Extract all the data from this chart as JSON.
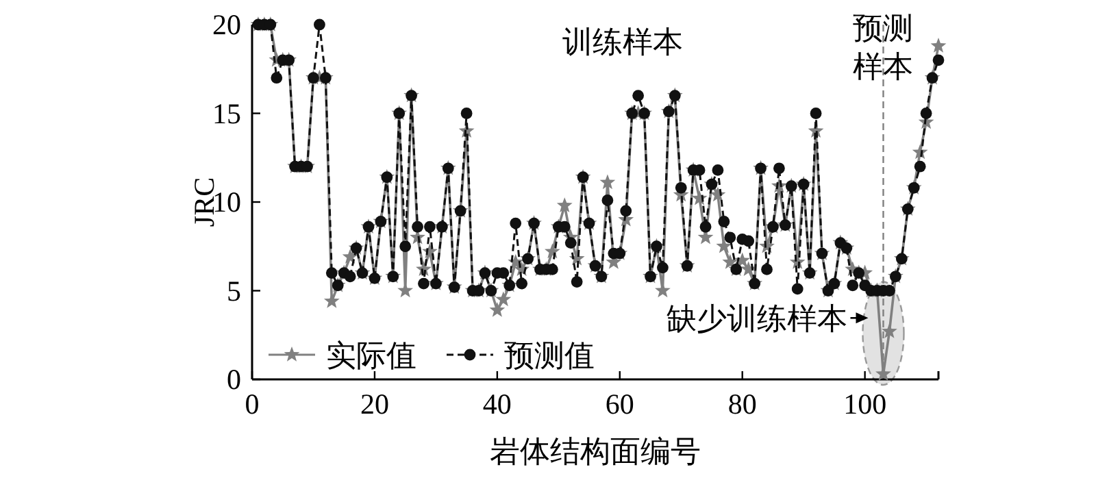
{
  "chart_data": {
    "type": "line",
    "xlabel": "岩体结构面编号",
    "ylabel": "JRC",
    "x": [
      1,
      2,
      3,
      4,
      5,
      6,
      7,
      8,
      9,
      10,
      11,
      12,
      13,
      14,
      15,
      16,
      17,
      18,
      19,
      20,
      21,
      22,
      23,
      24,
      25,
      26,
      27,
      28,
      29,
      30,
      31,
      32,
      33,
      34,
      35,
      36,
      37,
      38,
      39,
      40,
      41,
      42,
      43,
      44,
      45,
      46,
      47,
      48,
      49,
      50,
      51,
      52,
      53,
      54,
      55,
      56,
      57,
      58,
      59,
      60,
      61,
      62,
      63,
      64,
      65,
      66,
      67,
      68,
      69,
      70,
      71,
      72,
      73,
      74,
      75,
      76,
      77,
      78,
      79,
      80,
      81,
      82,
      83,
      84,
      85,
      86,
      87,
      88,
      89,
      90,
      91,
      92,
      93,
      94,
      95,
      96,
      97,
      98,
      99,
      100,
      101,
      102,
      103,
      104,
      105,
      106,
      107,
      108,
      109,
      110,
      111,
      112
    ],
    "series": [
      {
        "name": "实际值",
        "color": "#808080",
        "marker": "star",
        "line_style": "solid",
        "values": [
          20,
          20,
          20,
          18,
          18,
          18,
          12,
          12,
          12,
          17,
          17,
          17,
          4.4,
          5.3,
          6,
          6.9,
          7.4,
          6,
          8.6,
          5.7,
          8.9,
          11.4,
          5.8,
          15,
          5,
          16,
          8,
          6.2,
          7.2,
          5.4,
          8.6,
          11.9,
          5.2,
          9.5,
          14,
          5,
          5,
          6,
          5,
          3.9,
          4.5,
          5.3,
          6.6,
          6.2,
          6.8,
          8.8,
          6.2,
          6.2,
          7.2,
          8.6,
          9.8,
          8,
          6.8,
          11.4,
          8.8,
          6.4,
          5.8,
          11.1,
          6.6,
          7.1,
          9,
          15,
          15,
          15,
          5.8,
          7.5,
          5,
          15.1,
          16,
          10.4,
          6.4,
          11.8,
          10.2,
          8,
          11,
          10.4,
          7.5,
          6.6,
          6.2,
          6.7,
          6.2,
          5.4,
          11.9,
          7.5,
          8.6,
          10.9,
          8.7,
          10.9,
          6.6,
          11,
          6,
          14,
          7.1,
          5,
          5.4,
          7.7,
          7.4,
          6.2,
          6,
          6,
          5,
          5,
          0.3,
          2.7,
          5.8,
          6.8,
          9.6,
          10.8,
          12.8,
          14.5,
          17,
          18.8
        ]
      },
      {
        "name": "预测值",
        "color": "#111111",
        "marker": "circle",
        "line_style": "dashed",
        "values": [
          20,
          20,
          20,
          17,
          18,
          18,
          12,
          12,
          12,
          17,
          20,
          17,
          6,
          5.3,
          6,
          5.8,
          7.4,
          6,
          8.6,
          5.7,
          8.9,
          11.4,
          5.8,
          15,
          7.5,
          16,
          8.6,
          5.4,
          8.6,
          5.4,
          8.6,
          11.9,
          5.2,
          9.5,
          15,
          5,
          5,
          6,
          5,
          6,
          6,
          5.3,
          8.8,
          5.4,
          6.8,
          8.8,
          6.2,
          6.2,
          6.2,
          8.6,
          8.6,
          7.7,
          5.5,
          11.4,
          8.8,
          6.4,
          5.8,
          10.1,
          7.1,
          7.1,
          9.5,
          15,
          16,
          15,
          5.8,
          7.5,
          6.3,
          15.1,
          16,
          10.8,
          6.4,
          11.8,
          11.8,
          8.6,
          11,
          11.8,
          8.9,
          8,
          6.2,
          7.9,
          7.8,
          5.4,
          11.9,
          6.2,
          8.6,
          11.9,
          8.7,
          10.9,
          5.1,
          11,
          6,
          15,
          7.1,
          5,
          5.4,
          7.7,
          7.4,
          5.3,
          6,
          5.3,
          5,
          5,
          5,
          5,
          5.8,
          6.8,
          9.6,
          10.8,
          12,
          15,
          17,
          18
        ]
      }
    ],
    "xlim": [
      0,
      112
    ],
    "xticks": [
      0,
      20,
      40,
      60,
      80,
      100
    ],
    "ylim": [
      0,
      20
    ],
    "yticks": [
      0,
      5,
      10,
      15,
      20
    ],
    "grid": false,
    "legend": "bottom left",
    "ref_lines": [
      {
        "axis": "x",
        "value": 103,
        "color": "#808080",
        "line_style": "dashed"
      }
    ],
    "annotations": [
      "训练样本",
      "预测样本",
      {
        "text": "缺少训练样本",
        "x": 103,
        "y": 3
      }
    ]
  }
}
